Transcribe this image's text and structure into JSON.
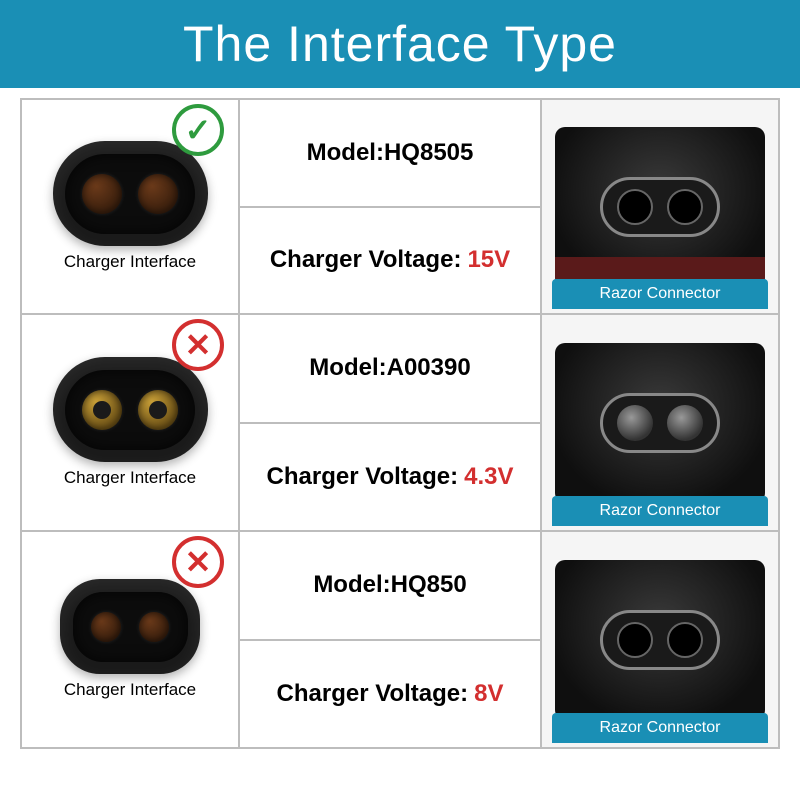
{
  "header": {
    "title": "The Interface Type"
  },
  "colors": {
    "header_bg": "#1a8fb5",
    "border": "#bdbdbd",
    "voltage_value": "#d32f2f",
    "check": "#2e9b3e",
    "cross": "#d32f2f",
    "razor_tab": "#1a8fb5"
  },
  "labels": {
    "charger_interface": "Charger Interface",
    "razor_connector": "Razor Connector",
    "model_prefix": "Model:",
    "voltage_prefix": "Charger Voltage:"
  },
  "rows": [
    {
      "model": "HQ8505",
      "voltage": "15V",
      "status": "check",
      "charger_style": "standard",
      "pin_style": "copper",
      "razor_style": "hole",
      "razor_band": "red"
    },
    {
      "model": "A00390",
      "voltage": "4.3V",
      "status": "cross",
      "charger_style": "standard",
      "pin_style": "gold",
      "razor_style": "pin",
      "razor_band": "none"
    },
    {
      "model": "HQ850",
      "voltage": "8V",
      "status": "cross",
      "charger_style": "narrow",
      "pin_style": "copper",
      "razor_style": "hole",
      "razor_band": "none"
    }
  ]
}
